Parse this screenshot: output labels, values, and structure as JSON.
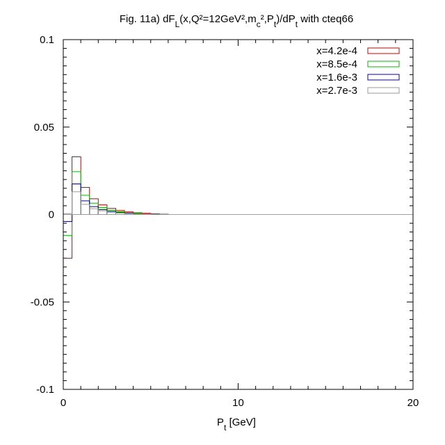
{
  "chart_data": {
    "type": "histogram",
    "title": {
      "prefix": "Fig. 11a) dF",
      "sub1": "L",
      "mid1": "(x,Q²=12GeV²,m",
      "sub2": "c",
      "mid2": "²,P",
      "sub3": "t",
      "mid3": ")/dP",
      "sub4": "t",
      "suffix": " with cteq66"
    },
    "xlabel": {
      "main": "P",
      "sub": "t",
      "unit": " [GeV]"
    },
    "xlim": [
      0,
      20
    ],
    "ylim": [
      -0.1,
      0.1
    ],
    "x_ticks": [
      "0",
      "10",
      "20"
    ],
    "y_ticks": [
      "0.1",
      "0.05",
      "0",
      "-0.05",
      "-0.1"
    ],
    "bin_edges": [
      0,
      0.5,
      1,
      1.5,
      2,
      2.5,
      3,
      3.5,
      4,
      4.5,
      5,
      5.5,
      6
    ],
    "legend_position": "top-right",
    "series": [
      {
        "name": "x=4.2e-4",
        "color": "#cc0000",
        "values": [
          -0.025,
          0.033,
          0.0155,
          0.009,
          0.0055,
          0.0035,
          0.0023,
          0.0015,
          0.001,
          0.0007,
          0.0004,
          0.0002
        ]
      },
      {
        "name": "x=8.5e-4",
        "color": "#00bb00",
        "values": [
          -0.012,
          0.0245,
          0.011,
          0.0065,
          0.004,
          0.0025,
          0.0016,
          0.001,
          0.0007,
          0.0004,
          0.0002,
          0.0001
        ]
      },
      {
        "name": "x=1.6e-3",
        "color": "#0000aa",
        "values": [
          -0.004,
          0.0175,
          0.0078,
          0.0045,
          0.0028,
          0.0018,
          0.0011,
          0.0007,
          0.0004,
          0.0002,
          0.0001,
          5e-05
        ]
      },
      {
        "name": "x=2.7e-3",
        "color": "#999999",
        "values": [
          0.0005,
          0.013,
          0.0058,
          0.0033,
          0.0021,
          0.0013,
          0.0008,
          0.0005,
          0.0003,
          0.00015,
          8e-05,
          3e-05
        ]
      }
    ]
  }
}
